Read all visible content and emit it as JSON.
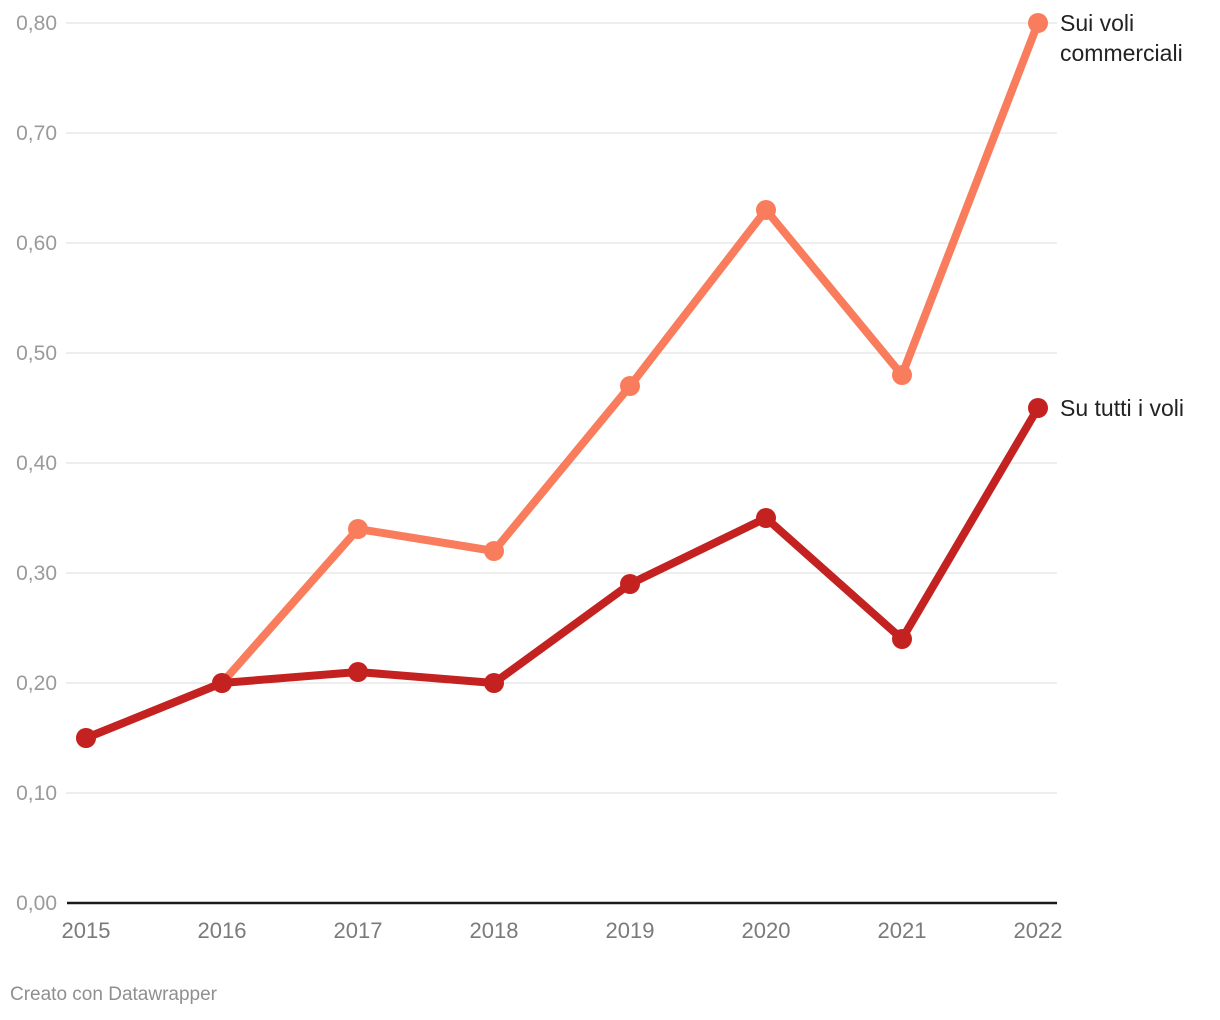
{
  "chart_data": {
    "type": "line",
    "x": [
      "2015",
      "2016",
      "2017",
      "2018",
      "2019",
      "2020",
      "2021",
      "2022"
    ],
    "series": [
      {
        "name": "Sui voli commerciali",
        "label_lines": [
          "Sui voli",
          "commerciali"
        ],
        "color": "#F97D5C",
        "values": [
          0.15,
          0.2,
          0.34,
          0.32,
          0.47,
          0.63,
          0.48,
          0.8
        ]
      },
      {
        "name": "Su tutti i voli",
        "label_lines": [
          "Su tutti i voli"
        ],
        "color": "#C32220",
        "values": [
          0.15,
          0.2,
          0.21,
          0.2,
          0.29,
          0.35,
          0.24,
          0.45
        ]
      }
    ],
    "y_ticks": [
      {
        "v": 0.0,
        "label": "0,00"
      },
      {
        "v": 0.1,
        "label": "0,10"
      },
      {
        "v": 0.2,
        "label": "0,20"
      },
      {
        "v": 0.3,
        "label": "0,30"
      },
      {
        "v": 0.4,
        "label": "0,40"
      },
      {
        "v": 0.5,
        "label": "0,50"
      },
      {
        "v": 0.6,
        "label": "0,60"
      },
      {
        "v": 0.7,
        "label": "0,70"
      },
      {
        "v": 0.8,
        "label": "0,80"
      }
    ],
    "ylim": [
      0,
      0.8
    ],
    "grid": true,
    "legend_position": "line-end-labels",
    "number_format": "comma-decimal (it-IT)"
  },
  "footer": {
    "attribution": "Creato con Datawrapper"
  },
  "colors": {
    "grid": "#DDDDDD",
    "axis": "#1A1A1A",
    "y_tick_text": "#9A9A9A",
    "x_tick_text": "#7A7A7A",
    "series_label_text": "#222222",
    "attribution_text": "#8F8F8F",
    "background": "#FFFFFF"
  }
}
